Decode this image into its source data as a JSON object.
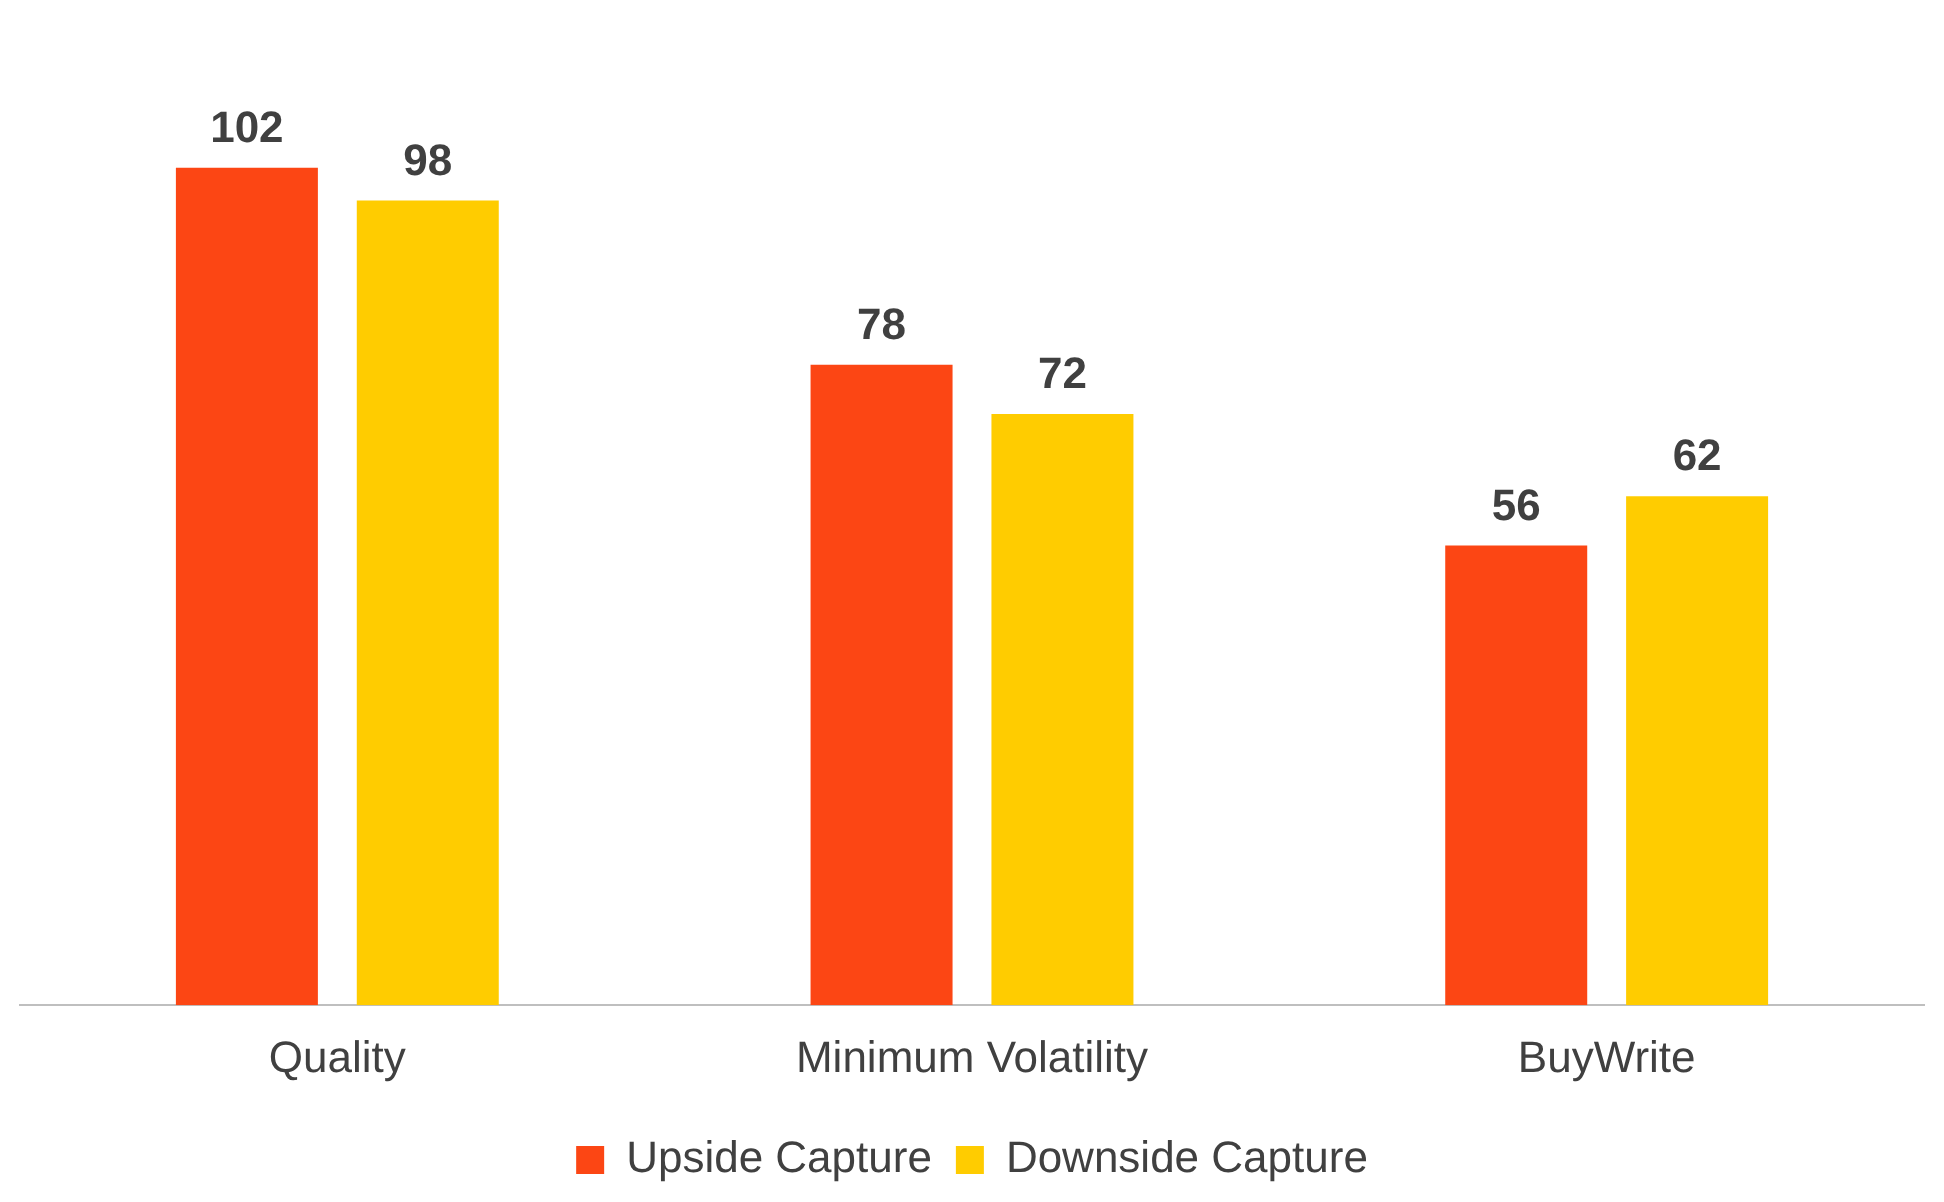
{
  "chart_data": {
    "type": "bar",
    "categories": [
      "Quality",
      "Minimum Volatility",
      "BuyWrite"
    ],
    "series": [
      {
        "name": "Upside Capture",
        "color": "#fc4614",
        "values": [
          102,
          78,
          56
        ]
      },
      {
        "name": "Downside Capture",
        "color": "#ffcc00",
        "values": [
          98,
          72,
          62
        ]
      }
    ],
    "data_labels": true,
    "grid": false,
    "legend": "bottom"
  }
}
